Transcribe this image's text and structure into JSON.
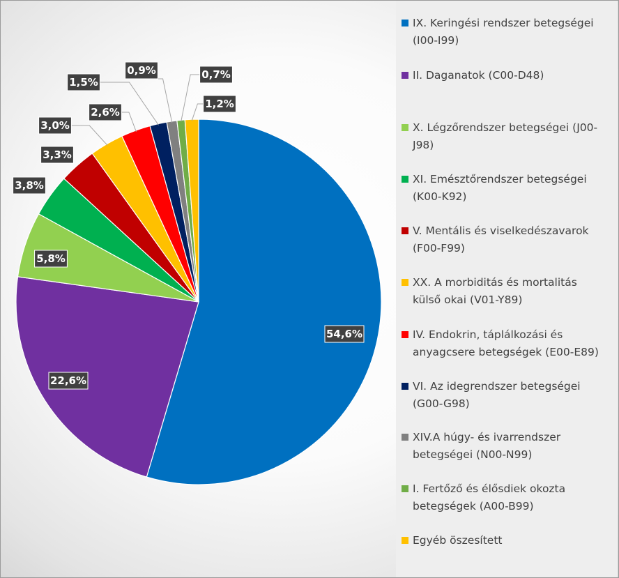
{
  "chart_data": {
    "type": "pie",
    "title": "",
    "categories": [
      "IX. Keringési rendszer betegségei (I00-I99)",
      "II. Daganatok (C00-D48)",
      "X. Légzőrendszer betegségei (J00-J98)",
      "XI. Emésztőrendszer betegségei (K00-K92)",
      "V. Mentális és viselkedészavarok (F00-F99)",
      "XX. A morbiditás és mortalitás külső okai (V01-Y89)",
      "IV. Endokrin, táplálkozási és anyagcsere betegségek (E00-E89)",
      "VI. Az idegrendszer betegségei (G00-G98)",
      "XIV.A húgy- és ivarrendszer betegségei (N00-N99)",
      "I. Fertőző és élősdiek okozta betegségek  (A00-B99)",
      "Egyéb öszesített"
    ],
    "values": [
      54.6,
      22.6,
      5.8,
      3.8,
      3.3,
      3.0,
      2.6,
      1.5,
      0.9,
      0.7,
      1.2
    ],
    "data_labels": [
      "54,6%",
      "22,6%",
      "5,8%",
      "3,8%",
      "3,3%",
      "3,0%",
      "2,6%",
      "1,5%",
      "0,9%",
      "0,7%",
      "1,2%"
    ],
    "colors": [
      "#0070c0",
      "#7030a0",
      "#92d050",
      "#00b050",
      "#c00000",
      "#ffc000",
      "#ff0000",
      "#002060",
      "#808080",
      "#70ad47",
      "#ffc000"
    ],
    "legend_position": "right",
    "legend": [
      [
        "IX. Keringési rendszer betegségei",
        "(I00-I99)"
      ],
      [
        "II. Daganatok (C00-D48)"
      ],
      [
        "X. Légzőrendszer betegségei (J00-",
        "J98)"
      ],
      [
        "XI. Emésztőrendszer betegségei",
        "(K00-K92)"
      ],
      [
        "V. Mentális és viselkedészavarok",
        "(F00-F99)"
      ],
      [
        "XX. A morbiditás és mortalitás",
        "külső okai (V01-Y89)"
      ],
      [
        "IV. Endokrin, táplálkozási és",
        "anyagcsere betegségek (E00-E89)"
      ],
      [
        "VI. Az idegrendszer betegségei",
        "(G00-G98)"
      ],
      [
        "XIV.A húgy- és ivarrendszer",
        "betegségei (N00-N99)"
      ],
      [
        "I. Fertőző és élősdiek okozta",
        "betegségek  (A00-B99)"
      ],
      [
        "Egyéb öszesített"
      ]
    ]
  }
}
